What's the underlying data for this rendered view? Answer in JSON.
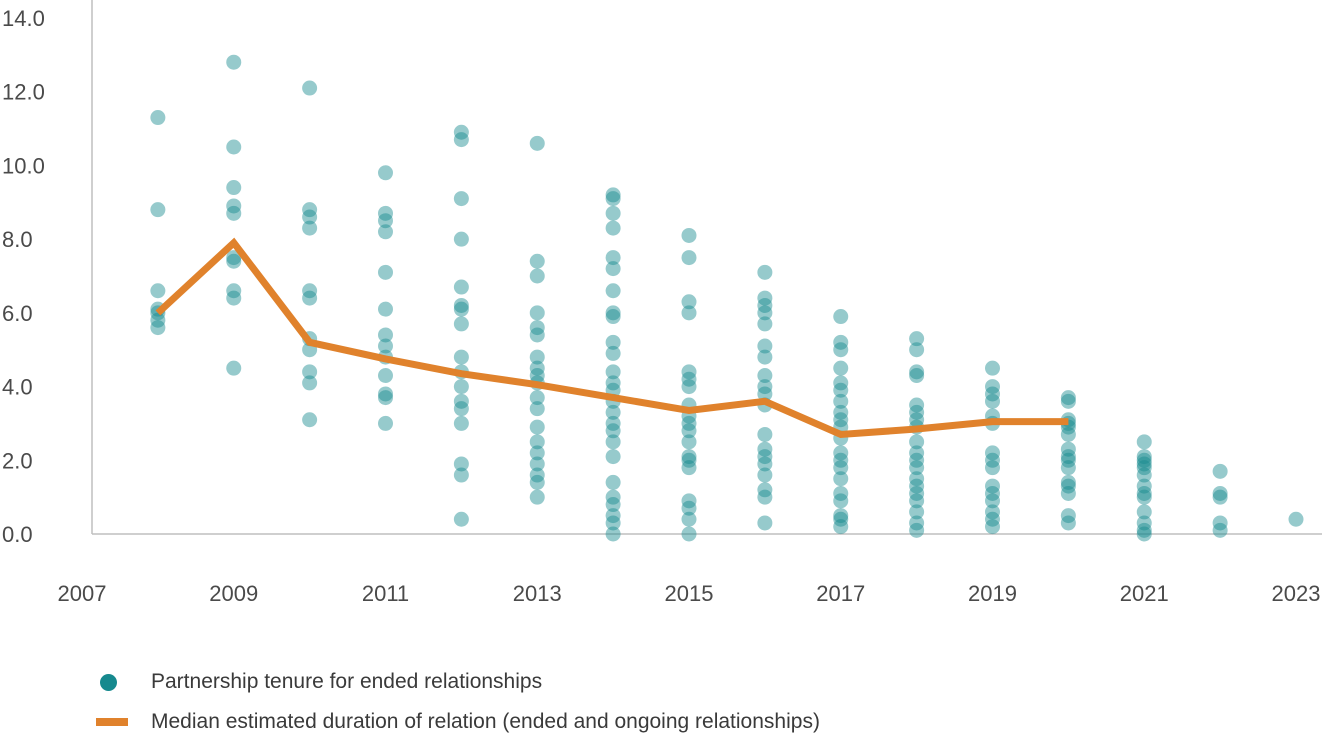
{
  "colors": {
    "dot": "#16898e",
    "median_line": "#e0822c",
    "axis": "#bfbfbf"
  },
  "legend": {
    "points_label": "Partnership tenure for ended relationships",
    "line_label": "Median estimated duration of relation (ended and ongoing relationships)"
  },
  "chart_data": {
    "type": "scatter",
    "title": "",
    "xlabel": "",
    "ylabel": "",
    "xlim": [
      2007,
      2023
    ],
    "ylim": [
      0,
      14
    ],
    "x_ticks": [
      2007,
      2009,
      2011,
      2013,
      2015,
      2017,
      2019,
      2021,
      2023
    ],
    "x_tick_labels": [
      "2007",
      "2009",
      "2011",
      "2013",
      "2015",
      "2017",
      "2019",
      "2021",
      "2023"
    ],
    "y_ticks": [
      0,
      2,
      4,
      6,
      8,
      10,
      12,
      14
    ],
    "y_tick_labels": [
      "0.0",
      "2.0",
      "4.0",
      "6.0",
      "8.0",
      "10.0",
      "12.0",
      "14.0"
    ],
    "legend_position": "bottom-left",
    "series": [
      {
        "name": "Partnership tenure for ended relationships",
        "type": "scatter",
        "points": [
          [
            2008,
            11.3
          ],
          [
            2008,
            8.8
          ],
          [
            2008,
            6.6
          ],
          [
            2008,
            6.1
          ],
          [
            2008,
            6.0
          ],
          [
            2008,
            5.8
          ],
          [
            2008,
            5.6
          ],
          [
            2009,
            12.8
          ],
          [
            2009,
            10.5
          ],
          [
            2009,
            9.4
          ],
          [
            2009,
            8.9
          ],
          [
            2009,
            8.7
          ],
          [
            2009,
            7.5
          ],
          [
            2009,
            7.4
          ],
          [
            2009,
            6.6
          ],
          [
            2009,
            6.4
          ],
          [
            2009,
            4.5
          ],
          [
            2010,
            12.1
          ],
          [
            2010,
            8.8
          ],
          [
            2010,
            8.6
          ],
          [
            2010,
            8.3
          ],
          [
            2010,
            6.6
          ],
          [
            2010,
            6.4
          ],
          [
            2010,
            5.3
          ],
          [
            2010,
            5.0
          ],
          [
            2010,
            4.4
          ],
          [
            2010,
            4.1
          ],
          [
            2010,
            3.1
          ],
          [
            2011,
            9.8
          ],
          [
            2011,
            8.7
          ],
          [
            2011,
            8.5
          ],
          [
            2011,
            8.2
          ],
          [
            2011,
            7.1
          ],
          [
            2011,
            6.1
          ],
          [
            2011,
            5.4
          ],
          [
            2011,
            5.1
          ],
          [
            2011,
            4.8
          ],
          [
            2011,
            4.3
          ],
          [
            2011,
            3.8
          ],
          [
            2011,
            3.7
          ],
          [
            2011,
            3.0
          ],
          [
            2012,
            10.9
          ],
          [
            2012,
            10.7
          ],
          [
            2012,
            9.1
          ],
          [
            2012,
            8.0
          ],
          [
            2012,
            6.7
          ],
          [
            2012,
            6.2
          ],
          [
            2012,
            6.1
          ],
          [
            2012,
            5.7
          ],
          [
            2012,
            4.8
          ],
          [
            2012,
            4.4
          ],
          [
            2012,
            4.0
          ],
          [
            2012,
            3.6
          ],
          [
            2012,
            3.4
          ],
          [
            2012,
            3.0
          ],
          [
            2012,
            1.9
          ],
          [
            2012,
            1.6
          ],
          [
            2012,
            0.4
          ],
          [
            2013,
            10.6
          ],
          [
            2013,
            7.4
          ],
          [
            2013,
            7.0
          ],
          [
            2013,
            6.0
          ],
          [
            2013,
            5.6
          ],
          [
            2013,
            5.4
          ],
          [
            2013,
            4.8
          ],
          [
            2013,
            4.5
          ],
          [
            2013,
            4.3
          ],
          [
            2013,
            4.1
          ],
          [
            2013,
            3.7
          ],
          [
            2013,
            3.4
          ],
          [
            2013,
            2.9
          ],
          [
            2013,
            2.5
          ],
          [
            2013,
            2.2
          ],
          [
            2013,
            1.9
          ],
          [
            2013,
            1.6
          ],
          [
            2013,
            1.4
          ],
          [
            2013,
            1.0
          ],
          [
            2014,
            9.2
          ],
          [
            2014,
            9.1
          ],
          [
            2014,
            8.7
          ],
          [
            2014,
            8.3
          ],
          [
            2014,
            7.5
          ],
          [
            2014,
            7.2
          ],
          [
            2014,
            6.6
          ],
          [
            2014,
            6.0
          ],
          [
            2014,
            5.9
          ],
          [
            2014,
            5.2
          ],
          [
            2014,
            4.9
          ],
          [
            2014,
            4.4
          ],
          [
            2014,
            4.1
          ],
          [
            2014,
            3.9
          ],
          [
            2014,
            3.6
          ],
          [
            2014,
            3.3
          ],
          [
            2014,
            3.0
          ],
          [
            2014,
            2.8
          ],
          [
            2014,
            2.5
          ],
          [
            2014,
            2.1
          ],
          [
            2014,
            1.4
          ],
          [
            2014,
            1.0
          ],
          [
            2014,
            0.8
          ],
          [
            2014,
            0.5
          ],
          [
            2014,
            0.3
          ],
          [
            2014,
            0.0
          ],
          [
            2015,
            8.1
          ],
          [
            2015,
            7.5
          ],
          [
            2015,
            6.3
          ],
          [
            2015,
            6.0
          ],
          [
            2015,
            4.4
          ],
          [
            2015,
            4.2
          ],
          [
            2015,
            4.0
          ],
          [
            2015,
            3.5
          ],
          [
            2015,
            3.2
          ],
          [
            2015,
            3.0
          ],
          [
            2015,
            2.8
          ],
          [
            2015,
            2.5
          ],
          [
            2015,
            2.1
          ],
          [
            2015,
            2.0
          ],
          [
            2015,
            1.8
          ],
          [
            2015,
            0.9
          ],
          [
            2015,
            0.7
          ],
          [
            2015,
            0.4
          ],
          [
            2015,
            0.0
          ],
          [
            2016,
            7.1
          ],
          [
            2016,
            6.4
          ],
          [
            2016,
            6.2
          ],
          [
            2016,
            6.0
          ],
          [
            2016,
            5.7
          ],
          [
            2016,
            5.1
          ],
          [
            2016,
            4.8
          ],
          [
            2016,
            4.3
          ],
          [
            2016,
            4.0
          ],
          [
            2016,
            3.8
          ],
          [
            2016,
            3.5
          ],
          [
            2016,
            2.7
          ],
          [
            2016,
            2.3
          ],
          [
            2016,
            2.1
          ],
          [
            2016,
            1.9
          ],
          [
            2016,
            1.6
          ],
          [
            2016,
            1.2
          ],
          [
            2016,
            1.0
          ],
          [
            2016,
            0.3
          ],
          [
            2017,
            5.9
          ],
          [
            2017,
            5.2
          ],
          [
            2017,
            5.0
          ],
          [
            2017,
            4.5
          ],
          [
            2017,
            4.1
          ],
          [
            2017,
            3.9
          ],
          [
            2017,
            3.6
          ],
          [
            2017,
            3.3
          ],
          [
            2017,
            3.1
          ],
          [
            2017,
            2.9
          ],
          [
            2017,
            2.6
          ],
          [
            2017,
            2.2
          ],
          [
            2017,
            2.0
          ],
          [
            2017,
            1.8
          ],
          [
            2017,
            1.5
          ],
          [
            2017,
            1.1
          ],
          [
            2017,
            0.9
          ],
          [
            2017,
            0.5
          ],
          [
            2017,
            0.4
          ],
          [
            2017,
            0.2
          ],
          [
            2018,
            5.3
          ],
          [
            2018,
            5.0
          ],
          [
            2018,
            4.4
          ],
          [
            2018,
            4.3
          ],
          [
            2018,
            3.5
          ],
          [
            2018,
            3.3
          ],
          [
            2018,
            3.1
          ],
          [
            2018,
            2.9
          ],
          [
            2018,
            2.5
          ],
          [
            2018,
            2.2
          ],
          [
            2018,
            2.0
          ],
          [
            2018,
            1.8
          ],
          [
            2018,
            1.5
          ],
          [
            2018,
            1.3
          ],
          [
            2018,
            1.1
          ],
          [
            2018,
            0.9
          ],
          [
            2018,
            0.6
          ],
          [
            2018,
            0.3
          ],
          [
            2018,
            0.1
          ],
          [
            2019,
            4.5
          ],
          [
            2019,
            4.0
          ],
          [
            2019,
            3.8
          ],
          [
            2019,
            3.6
          ],
          [
            2019,
            3.2
          ],
          [
            2019,
            3.0
          ],
          [
            2019,
            2.2
          ],
          [
            2019,
            2.0
          ],
          [
            2019,
            1.8
          ],
          [
            2019,
            1.3
          ],
          [
            2019,
            1.1
          ],
          [
            2019,
            0.9
          ],
          [
            2019,
            0.6
          ],
          [
            2019,
            0.4
          ],
          [
            2019,
            0.2
          ],
          [
            2020,
            3.7
          ],
          [
            2020,
            3.6
          ],
          [
            2020,
            3.1
          ],
          [
            2020,
            3.0
          ],
          [
            2020,
            2.9
          ],
          [
            2020,
            2.7
          ],
          [
            2020,
            2.3
          ],
          [
            2020,
            2.1
          ],
          [
            2020,
            2.0
          ],
          [
            2020,
            1.8
          ],
          [
            2020,
            1.4
          ],
          [
            2020,
            1.3
          ],
          [
            2020,
            1.1
          ],
          [
            2020,
            0.5
          ],
          [
            2020,
            0.3
          ],
          [
            2021,
            2.5
          ],
          [
            2021,
            2.1
          ],
          [
            2021,
            2.0
          ],
          [
            2021,
            1.9
          ],
          [
            2021,
            1.8
          ],
          [
            2021,
            1.6
          ],
          [
            2021,
            1.3
          ],
          [
            2021,
            1.1
          ],
          [
            2021,
            1.0
          ],
          [
            2021,
            0.6
          ],
          [
            2021,
            0.3
          ],
          [
            2021,
            0.1
          ],
          [
            2021,
            0.0
          ],
          [
            2022,
            1.7
          ],
          [
            2022,
            1.1
          ],
          [
            2022,
            1.0
          ],
          [
            2022,
            0.3
          ],
          [
            2022,
            0.1
          ],
          [
            2023,
            0.4
          ]
        ]
      },
      {
        "name": "Median estimated duration of relation (ended and ongoing relationships)",
        "type": "line",
        "x": [
          2008,
          2009,
          2010,
          2011,
          2012,
          2013,
          2014,
          2015,
          2016,
          2017,
          2018,
          2019,
          2020
        ],
        "values": [
          6.0,
          7.9,
          5.2,
          4.75,
          4.35,
          4.05,
          3.7,
          3.35,
          3.6,
          2.7,
          2.85,
          3.05,
          3.05
        ]
      }
    ]
  }
}
